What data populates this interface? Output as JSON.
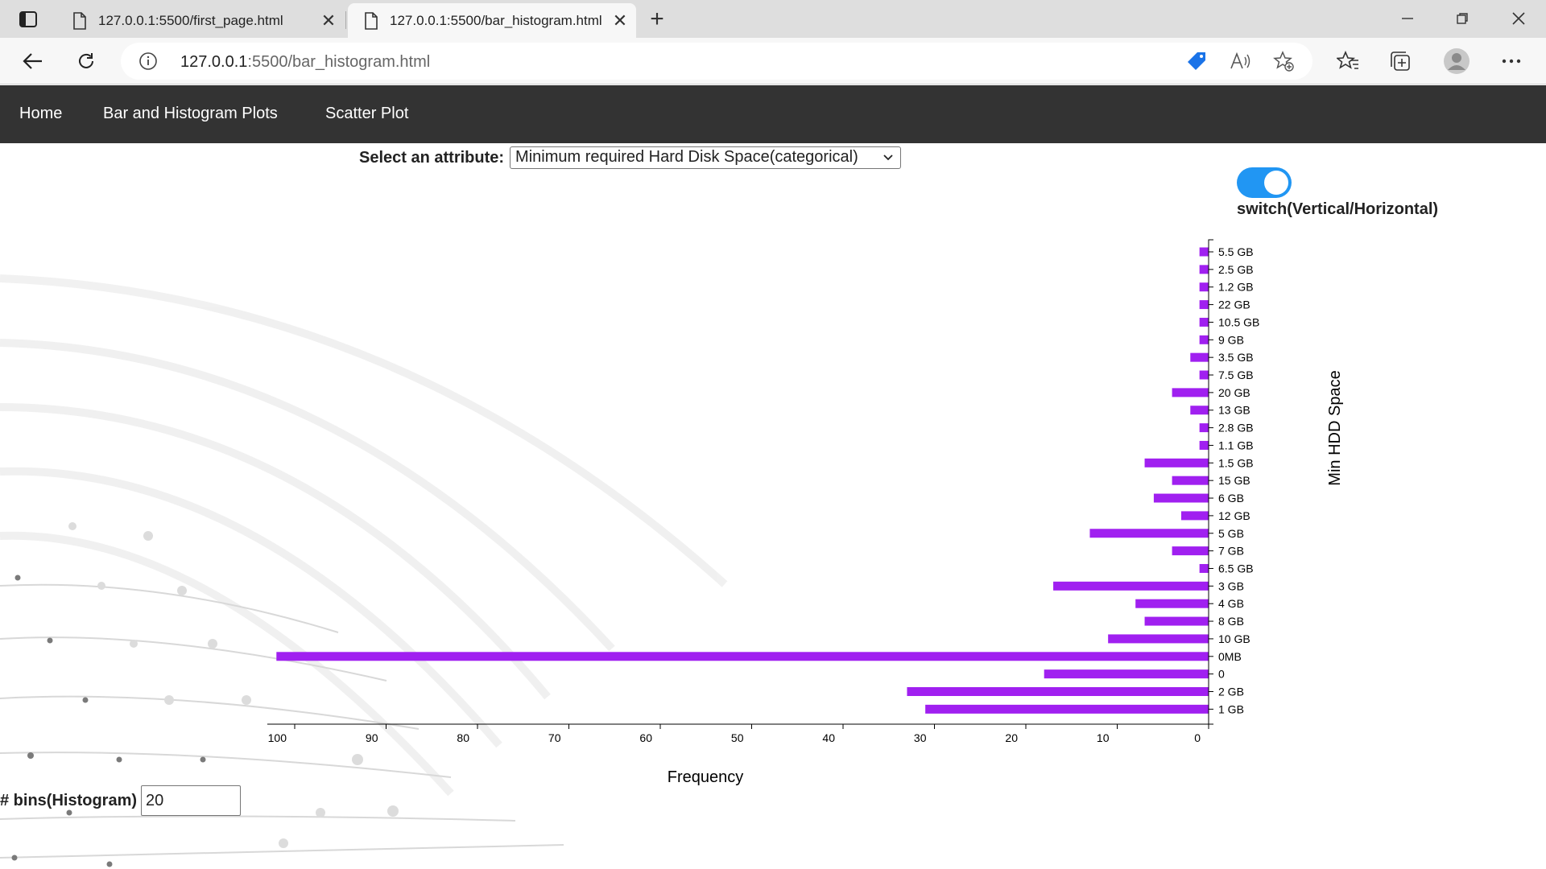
{
  "browser": {
    "tabs": [
      {
        "title": "127.0.0.1:5500/first_page.html"
      },
      {
        "title": "127.0.0.1:5500/bar_histogram.html"
      }
    ],
    "url_host": "127.0.0.1",
    "url_path": ":5500/bar_histogram.html"
  },
  "nav": {
    "items": [
      "Home",
      "Bar and Histogram Plots",
      "Scatter Plot"
    ]
  },
  "controls": {
    "attribute_label": "Select an attribute:",
    "attribute_selected": "Minimum required Hard Disk Space(categorical)",
    "switch_label": "switch(Vertical/Horizontal)",
    "switch_on": true,
    "bins_label": "# bins(Histogram)",
    "bins_value": "20"
  },
  "colors": {
    "bar": "#a020f0",
    "nav_bg": "#333333",
    "switch": "#2196f3"
  },
  "chart_data": {
    "type": "bar",
    "orientation": "horizontal",
    "x_reversed": true,
    "categories": [
      "5.5 GB",
      "2.5 GB",
      "1.2 GB",
      "22 GB",
      "10.5 GB",
      "9 GB",
      "3.5 GB",
      "7.5 GB",
      "20 GB",
      "13 GB",
      "2.8 GB",
      "1.1 GB",
      "1.5 GB",
      "15 GB",
      "6 GB",
      "12 GB",
      "5 GB",
      "7 GB",
      "6.5 GB",
      "3 GB",
      "4 GB",
      "8 GB",
      "10 GB",
      "0MB",
      "0",
      "2 GB",
      "1 GB"
    ],
    "values": [
      1,
      1,
      1,
      1,
      1,
      1,
      2,
      1,
      4,
      2,
      1,
      1,
      7,
      4,
      6,
      3,
      13,
      4,
      1,
      17,
      8,
      7,
      11,
      102,
      18,
      33,
      31
    ],
    "xlabel": "Frequency",
    "ylabel": "Min  HDD  Space",
    "x_ticks": [
      100,
      90,
      80,
      70,
      60,
      50,
      40,
      30,
      20,
      10,
      0
    ],
    "xlim": [
      0,
      103
    ]
  }
}
